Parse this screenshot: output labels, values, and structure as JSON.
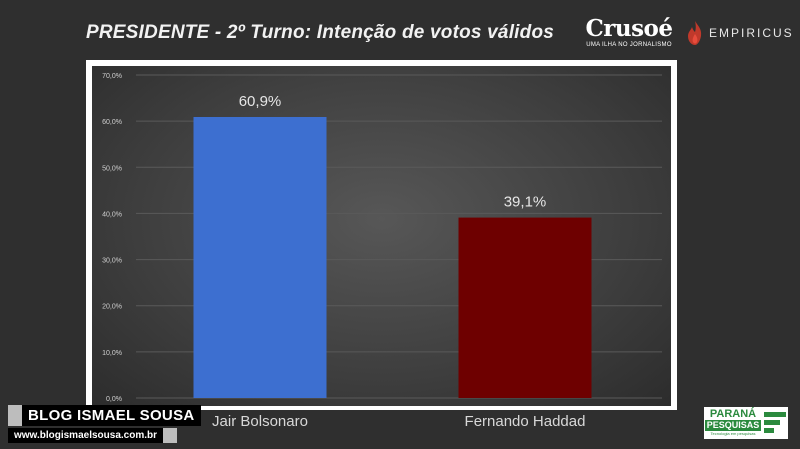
{
  "header": {
    "title": "PRESIDENTE - 2º Turno: Intenção de votos válidos",
    "brand_crusoe": "Crusoé",
    "brand_crusoe_tagline": "UMA ILHA NO JORNALISMO",
    "brand_empiricus": "EMPIRICUS"
  },
  "watermark": {
    "blog_name": "BLOG ISMAEL SOUSA",
    "blog_url": "www.blogismaelsousa.com.br"
  },
  "source_logo": {
    "line1": "PARANÁ",
    "line2": "PESQUISAS",
    "tagline": "Tecnologia em pesquisas"
  },
  "colors": {
    "bolsonaro_bar": "#3d6fd0",
    "haddad_bar": "#6e0000",
    "grid": "#5a5a5a",
    "tick_text": "#d0d0d0"
  },
  "chart_data": {
    "type": "bar",
    "title": "PRESIDENTE - 2º Turno: Intenção de votos válidos",
    "categories": [
      "Jair Bolsonaro",
      "Fernando Haddad"
    ],
    "values": [
      60.9,
      39.1
    ],
    "data_labels": [
      "60,9%",
      "39,1%"
    ],
    "ylim": [
      0,
      70
    ],
    "yticks": [
      "0,0%",
      "10,0%",
      "20,0%",
      "30,0%",
      "40,0%",
      "50,0%",
      "60,0%",
      "70,0%"
    ],
    "grid": true,
    "legend": "none"
  }
}
